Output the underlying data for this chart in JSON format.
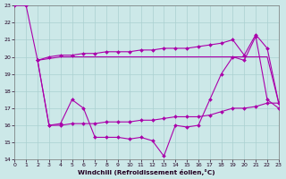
{
  "background_color": "#cce8e8",
  "grid_color": "#aad0d0",
  "line_color": "#aa00aa",
  "xlabel": "Windchill (Refroidissement éolien,°C)",
  "xlim": [
    0,
    23
  ],
  "ylim": [
    14,
    23
  ],
  "yticks": [
    14,
    15,
    16,
    17,
    18,
    19,
    20,
    21,
    22,
    23
  ],
  "xticks": [
    0,
    1,
    2,
    3,
    4,
    5,
    6,
    7,
    8,
    9,
    10,
    11,
    12,
    13,
    14,
    15,
    16,
    17,
    18,
    19,
    20,
    21,
    22,
    23
  ],
  "line1_x": [
    0,
    1,
    2,
    3,
    4,
    5,
    6,
    7,
    8,
    9,
    10,
    11,
    12,
    13,
    14,
    15,
    16,
    17,
    18,
    19,
    20,
    21,
    22,
    23
  ],
  "line1_y": [
    23.0,
    23.0,
    19.8,
    16.0,
    16.1,
    17.5,
    17.0,
    15.3,
    15.3,
    15.3,
    15.2,
    15.3,
    15.1,
    14.2,
    16.0,
    15.9,
    16.0,
    17.5,
    19.0,
    20.0,
    19.8,
    21.2,
    17.5,
    17.0
  ],
  "line2_x": [
    2,
    3,
    4,
    5,
    6,
    7,
    8,
    9,
    10,
    11,
    12,
    13,
    14,
    15,
    16,
    17,
    18,
    19,
    20,
    21,
    22,
    23
  ],
  "line2_y": [
    19.8,
    20.0,
    20.1,
    20.1,
    20.2,
    20.2,
    20.3,
    20.3,
    20.3,
    20.4,
    20.4,
    20.5,
    20.5,
    20.5,
    20.6,
    20.7,
    20.8,
    21.0,
    20.1,
    21.3,
    20.5,
    17.3
  ],
  "line3_x": [
    2,
    3,
    4,
    5,
    6,
    7,
    8,
    9,
    10,
    11,
    12,
    13,
    14,
    15,
    16,
    17,
    18,
    19,
    20,
    21,
    22,
    23
  ],
  "line3_y": [
    19.8,
    19.9,
    20.0,
    20.0,
    20.0,
    20.0,
    20.0,
    20.0,
    20.0,
    20.0,
    20.0,
    20.0,
    20.0,
    20.0,
    20.0,
    20.0,
    20.0,
    20.0,
    20.0,
    20.0,
    20.0,
    17.3
  ],
  "line4_x": [
    2,
    3,
    4,
    5,
    6,
    7,
    8,
    9,
    10,
    11,
    12,
    13,
    14,
    15,
    16,
    17,
    18,
    19,
    20,
    21,
    22,
    23
  ],
  "line4_y": [
    19.8,
    16.0,
    16.0,
    16.1,
    16.1,
    16.1,
    16.2,
    16.2,
    16.2,
    16.3,
    16.3,
    16.4,
    16.5,
    16.5,
    16.5,
    16.6,
    16.8,
    17.0,
    17.0,
    17.1,
    17.3,
    17.3
  ]
}
